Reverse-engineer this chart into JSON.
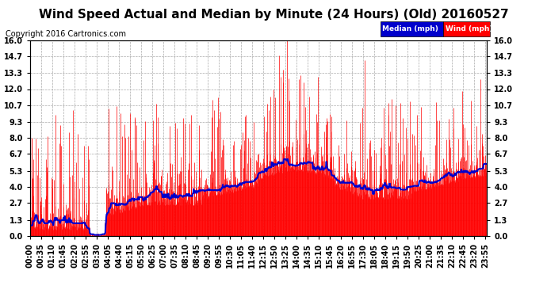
{
  "title": "Wind Speed Actual and Median by Minute (24 Hours) (Old) 20160527",
  "copyright": "Copyright 2016 Cartronics.com",
  "yticks": [
    0.0,
    1.3,
    2.7,
    4.0,
    5.3,
    6.7,
    8.0,
    9.3,
    10.7,
    12.0,
    13.3,
    14.7,
    16.0
  ],
  "ylim": [
    0.0,
    16.0
  ],
  "legend_median_label": "Median (mph)",
  "legend_wind_label": "Wind (mph)",
  "background_color": "#ffffff",
  "grid_color": "#aaaaaa",
  "title_fontsize": 11,
  "copyright_fontsize": 7,
  "tick_fontsize": 7,
  "bar_color": "#ff0000",
  "median_color": "#0000cc",
  "total_minutes": 1440,
  "tick_step": 35,
  "seed": 42
}
